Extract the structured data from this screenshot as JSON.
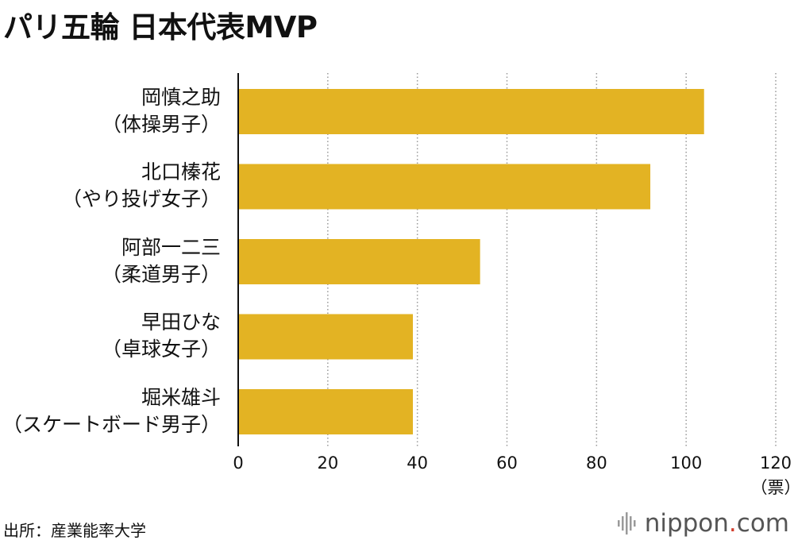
{
  "chart_data": {
    "type": "bar",
    "orientation": "horizontal",
    "title": "パリ五輪 日本代表MVP",
    "categories": [
      {
        "name": "岡慎之助",
        "sport": "（体操男子）"
      },
      {
        "name": "北口榛花",
        "sport": "（やり投げ女子）"
      },
      {
        "name": "阿部一二三",
        "sport": "（柔道男子）"
      },
      {
        "name": "早田ひな",
        "sport": "（卓球女子）"
      },
      {
        "name": "堀米雄斗",
        "sport": "（スケートボード男子）"
      }
    ],
    "values": [
      104,
      92,
      54,
      39,
      39
    ],
    "xlim": [
      0,
      120
    ],
    "xticks": [
      "0",
      "20",
      "40",
      "60",
      "80",
      "100",
      "120"
    ],
    "xunit": "（票）",
    "grid": "vertical dotted",
    "bar_color": "#e3b323"
  },
  "source": "出所：産業能率大学",
  "brand": {
    "name": "nippon",
    "dot": ".",
    "suffix": "com"
  },
  "colors": {
    "bar": "#e3b323",
    "axis": "#111111",
    "grid": "#999999",
    "brand_dot": "#d23b2a"
  }
}
